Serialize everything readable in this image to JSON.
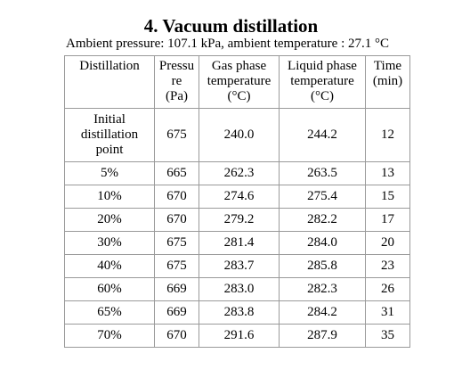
{
  "title": "4. Vacuum distillation",
  "subtitle": "Ambient pressure: 107.1 kPa, ambient temperature : 27.1 °C",
  "table": {
    "headers": [
      [
        "Distillation"
      ],
      [
        "Pressu",
        "re",
        "(Pa)"
      ],
      [
        "Gas phase",
        "temperature",
        "(°C)"
      ],
      [
        "Liquid phase",
        "temperature",
        "(°C)"
      ],
      [
        "Time",
        "(min)"
      ]
    ],
    "first_row": {
      "label": [
        "Initial",
        "distillation",
        "point"
      ],
      "pressure": "675",
      "gas": "240.0",
      "liquid": "244.2",
      "time": "12"
    },
    "rows": [
      {
        "label": "5%",
        "pressure": "665",
        "gas": "262.3",
        "liquid": "263.5",
        "time": "13"
      },
      {
        "label": "10%",
        "pressure": "670",
        "gas": "274.6",
        "liquid": "275.4",
        "time": "15"
      },
      {
        "label": "20%",
        "pressure": "670",
        "gas": "279.2",
        "liquid": "282.2",
        "time": "17"
      },
      {
        "label": "30%",
        "pressure": "675",
        "gas": "281.4",
        "liquid": "284.0",
        "time": "20"
      },
      {
        "label": "40%",
        "pressure": "675",
        "gas": "283.7",
        "liquid": "285.8",
        "time": "23"
      },
      {
        "label": "60%",
        "pressure": "669",
        "gas": "283.0",
        "liquid": "282.3",
        "time": "26"
      },
      {
        "label": "65%",
        "pressure": "669",
        "gas": "283.8",
        "liquid": "284.2",
        "time": "31"
      },
      {
        "label": "70%",
        "pressure": "670",
        "gas": "291.6",
        "liquid": "287.9",
        "time": "35"
      }
    ]
  }
}
